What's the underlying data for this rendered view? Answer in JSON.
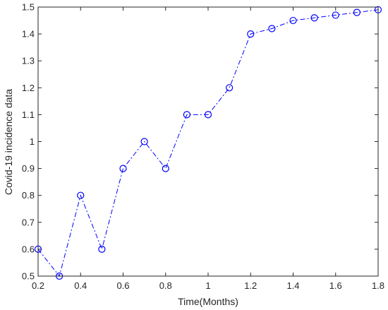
{
  "chart_data": {
    "type": "line",
    "title": "",
    "xlabel": "Time(Months)",
    "ylabel": "Covid-19 incidence data",
    "xlim": [
      0.2,
      1.8
    ],
    "ylim": [
      0.5,
      1.5
    ],
    "xticks": [
      "0.2",
      "0.4",
      "0.6",
      "0.8",
      "1",
      "1.2",
      "1.4",
      "1.6",
      "1.8"
    ],
    "yticks": [
      "0.5",
      "0.6",
      "0.7",
      "0.8",
      "0.9",
      "1",
      "1.1",
      "1.2",
      "1.3",
      "1.4",
      "1.5"
    ],
    "grid": false,
    "line_style": "dash-dot",
    "marker": "circle",
    "color": "#0000ff",
    "series": [
      {
        "x": [
          0.2,
          0.3,
          0.4,
          0.5,
          0.6,
          0.7,
          0.8,
          0.9,
          1.0,
          1.1,
          1.2,
          1.3,
          1.4,
          1.5,
          1.6,
          1.7,
          1.8
        ],
        "y": [
          0.6,
          0.5,
          0.8,
          0.6,
          0.9,
          1.0,
          0.9,
          1.1,
          1.1,
          1.2,
          1.4,
          1.42,
          1.45,
          1.46,
          1.47,
          1.48,
          1.49
        ]
      }
    ]
  }
}
